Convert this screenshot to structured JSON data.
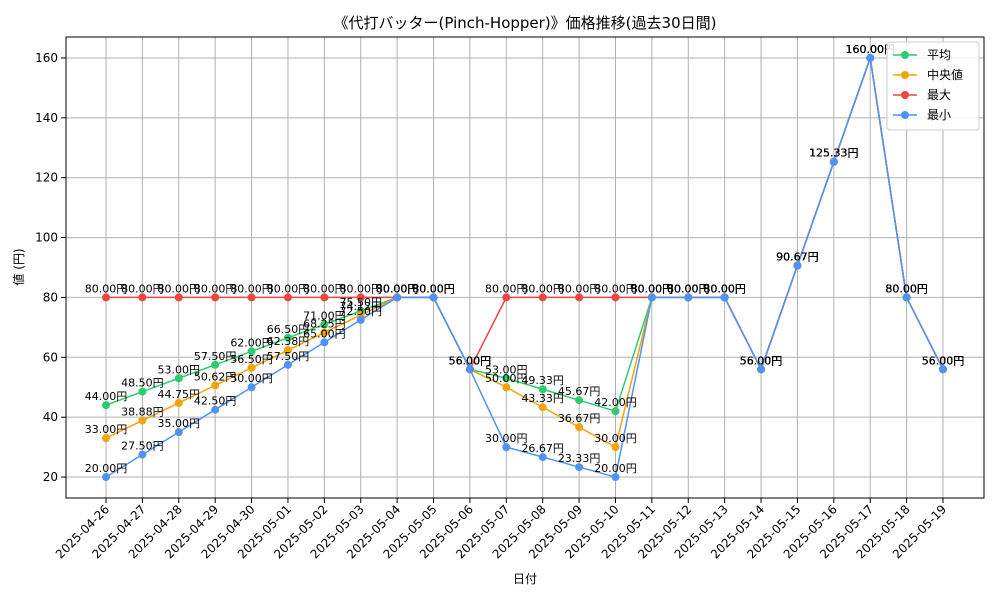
{
  "chart_data": {
    "type": "line",
    "title": "《代打バッター(Pinch-Hopper)》価格推移(過去30日間)",
    "xlabel": "日付",
    "ylabel": "値 (円)",
    "ylim": [
      13,
      167
    ],
    "yticks": [
      20,
      40,
      60,
      80,
      100,
      120,
      140,
      160
    ],
    "grid": true,
    "legend_position": "top-right",
    "value_suffix": "円",
    "categories": [
      "2025-04-26",
      "2025-04-27",
      "2025-04-28",
      "2025-04-29",
      "2025-04-30",
      "2025-05-01",
      "2025-05-02",
      "2025-05-03",
      "2025-05-04",
      "2025-05-05",
      "2025-05-06",
      "2025-05-07",
      "2025-05-08",
      "2025-05-09",
      "2025-05-10",
      "2025-05-11",
      "2025-05-12",
      "2025-05-13",
      "2025-05-14",
      "2025-05-15",
      "2025-05-16",
      "2025-05-17",
      "2025-05-18",
      "2025-05-19"
    ],
    "series": [
      {
        "name": "平均",
        "color": "#2ecc71",
        "values": [
          44.0,
          48.5,
          53.0,
          57.5,
          62.0,
          66.5,
          71.0,
          75.5,
          80.0,
          80.0,
          56.0,
          53.0,
          49.33,
          45.67,
          42.0,
          80.0,
          80.0,
          80.0,
          56.0,
          90.67,
          125.33,
          160.0,
          80.0,
          56.0
        ]
      },
      {
        "name": "中央値",
        "color": "#f5a30a",
        "values": [
          33.0,
          38.88,
          44.75,
          50.62,
          56.5,
          62.38,
          68.25,
          74.12,
          80.0,
          80.0,
          56.0,
          50.0,
          43.33,
          36.67,
          30.0,
          80.0,
          80.0,
          80.0,
          56.0,
          90.67,
          125.33,
          160.0,
          80.0,
          56.0
        ]
      },
      {
        "name": "最大",
        "color": "#ef4444",
        "values": [
          80.0,
          80.0,
          80.0,
          80.0,
          80.0,
          80.0,
          80.0,
          80.0,
          80.0,
          80.0,
          56.0,
          80.0,
          80.0,
          80.0,
          80.0,
          80.0,
          80.0,
          80.0,
          56.0,
          90.67,
          125.33,
          160.0,
          80.0,
          56.0
        ]
      },
      {
        "name": "最小",
        "color": "#4d94f5",
        "values": [
          20.0,
          27.5,
          35.0,
          42.5,
          50.0,
          57.5,
          65.0,
          72.5,
          80.0,
          80.0,
          56.0,
          30.0,
          26.67,
          23.33,
          20.0,
          80.0,
          80.0,
          80.0,
          56.0,
          90.67,
          125.33,
          160.0,
          80.0,
          56.0
        ]
      }
    ]
  }
}
